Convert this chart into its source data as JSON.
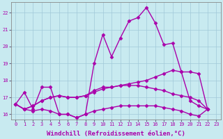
{
  "background_color": "#c8eaf0",
  "grid_color": "#a0c8d8",
  "line_color": "#aa00aa",
  "marker": "D",
  "markersize": 2.5,
  "linewidth": 1.0,
  "xlim": [
    -0.5,
    23.5
  ],
  "ylim": [
    15.7,
    22.6
  ],
  "yticks": [
    16,
    17,
    18,
    19,
    20,
    21,
    22
  ],
  "xticks": [
    0,
    1,
    2,
    3,
    4,
    5,
    6,
    7,
    8,
    9,
    10,
    11,
    12,
    13,
    14,
    15,
    16,
    17,
    18,
    19,
    20,
    21,
    22,
    23
  ],
  "xlabel": "Windchill (Refroidissement éolien,°C)",
  "xlabel_fontsize": 6.5,
  "tick_fontsize": 5.0,
  "series": [
    {
      "x": [
        0,
        1,
        2,
        3,
        4,
        5,
        6,
        7,
        8,
        9,
        10,
        11,
        12,
        13,
        14,
        15,
        16,
        17,
        18,
        19,
        20,
        21,
        22
      ],
      "y": [
        16.6,
        17.3,
        16.3,
        17.6,
        17.6,
        16.0,
        16.0,
        15.8,
        16.0,
        19.0,
        20.7,
        19.4,
        20.5,
        21.5,
        21.7,
        22.3,
        21.4,
        20.1,
        20.2,
        18.5,
        16.8,
        16.5,
        16.3
      ]
    },
    {
      "x": [
        0,
        1,
        2,
        3,
        4,
        5,
        6,
        7,
        8,
        9,
        10,
        11,
        12,
        13,
        14,
        15,
        16,
        17,
        18,
        19,
        20,
        21,
        22
      ],
      "y": [
        16.6,
        16.3,
        16.5,
        16.8,
        17.0,
        17.1,
        17.0,
        17.0,
        17.1,
        17.3,
        17.5,
        17.6,
        17.7,
        17.8,
        17.9,
        18.0,
        18.2,
        18.4,
        18.6,
        18.5,
        18.5,
        18.4,
        16.3
      ]
    },
    {
      "x": [
        0,
        1,
        2,
        3,
        4,
        5,
        6,
        7,
        8,
        9,
        10,
        11,
        12,
        13,
        14,
        15,
        16,
        17,
        18,
        19,
        20,
        21,
        22
      ],
      "y": [
        16.6,
        16.3,
        16.5,
        16.8,
        17.0,
        17.1,
        17.0,
        17.0,
        17.1,
        17.4,
        17.6,
        17.6,
        17.7,
        17.7,
        17.7,
        17.6,
        17.5,
        17.4,
        17.2,
        17.1,
        17.0,
        16.8,
        16.3
      ]
    },
    {
      "x": [
        0,
        1,
        2,
        3,
        4,
        5,
        6,
        7,
        8,
        9,
        10,
        11,
        12,
        13,
        14,
        15,
        16,
        17,
        18,
        19,
        20,
        21,
        22
      ],
      "y": [
        16.6,
        16.3,
        16.2,
        16.3,
        16.2,
        16.0,
        16.0,
        15.8,
        16.0,
        16.2,
        16.3,
        16.4,
        16.5,
        16.5,
        16.5,
        16.5,
        16.5,
        16.4,
        16.3,
        16.2,
        16.0,
        15.9,
        16.3
      ]
    }
  ]
}
